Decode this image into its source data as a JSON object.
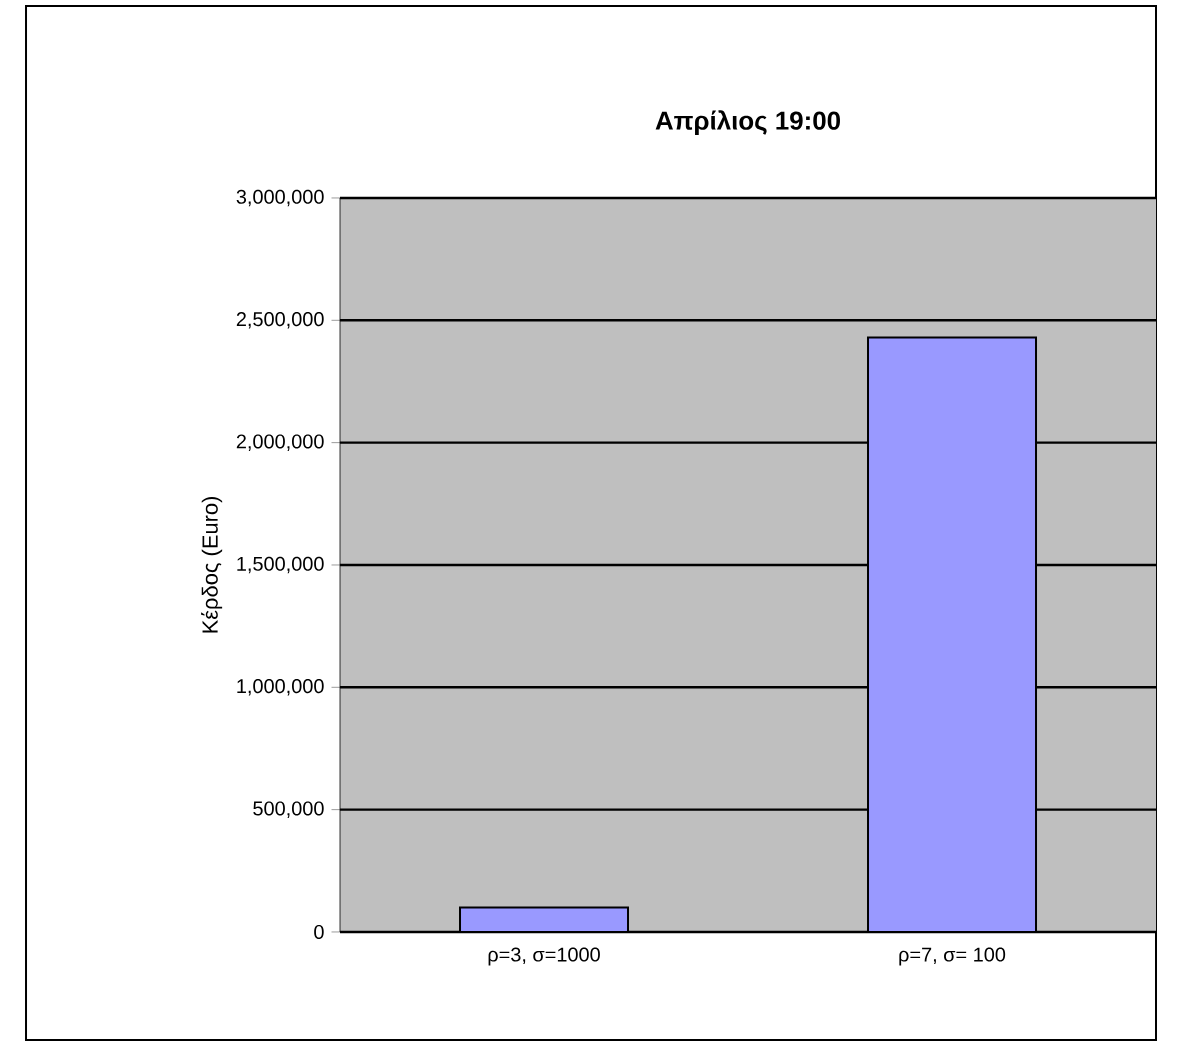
{
  "chart_data": {
    "type": "bar",
    "title": "Απρίλιος 19:00",
    "ylabel": "Κέρδος (Euro)",
    "categories": [
      "ρ=3, σ=1000",
      "ρ=7, σ= 100"
    ],
    "values": [
      100000,
      2430000
    ],
    "color": "#9999ff",
    "ylim": [
      0,
      3000000
    ],
    "yticks": [
      {
        "value": 0,
        "label": "0"
      },
      {
        "value": 500000,
        "label": "500,000"
      },
      {
        "value": 1000000,
        "label": "1,000,000"
      },
      {
        "value": 1500000,
        "label": "1,500,000"
      },
      {
        "value": 2000000,
        "label": "2,000,000"
      },
      {
        "value": 2500000,
        "label": "2,500,000"
      },
      {
        "value": 3000000,
        "label": "3,000,000"
      }
    ],
    "grid": "y"
  }
}
